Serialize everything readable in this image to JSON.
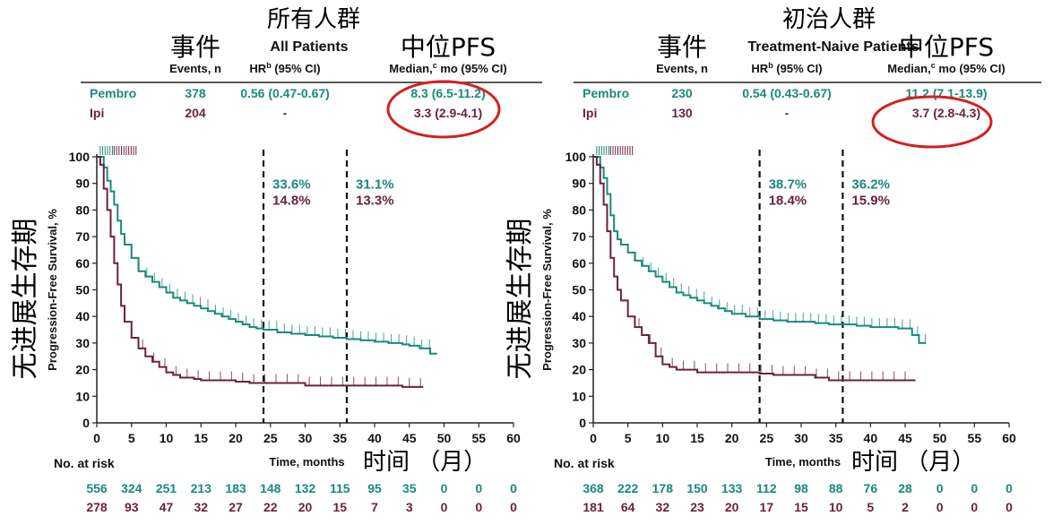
{
  "colors": {
    "pembro": "#1a8a7a",
    "ipi": "#6b2141",
    "circle": "#d42020",
    "axis": "#222222"
  },
  "common": {
    "y_axis_title": "Progression-Free Survival, %",
    "y_axis_cn": "无进展生存期",
    "x_axis_title": "Time, months",
    "x_axis_cn": "时间 （月）",
    "col_events_cn": "事件",
    "col_events": "Events, n",
    "col_hr": "HR",
    "col_hr_sup": "b",
    "col_hr_ci": " (95% CI)",
    "col_median_cn": "中位PFS",
    "col_median_label": "Median,",
    "col_median_sup": "c",
    "col_median_unit": " mo (95% CI)",
    "risk_label": "No. at risk"
  },
  "chart_data": [
    {
      "type": "line",
      "subtitle_cn": "所有人群",
      "title": "All Patients",
      "xlim": [
        0,
        60
      ],
      "ylim": [
        0,
        100
      ],
      "xticks": [
        0,
        5,
        10,
        15,
        20,
        25,
        30,
        35,
        40,
        45,
        50,
        55,
        60
      ],
      "yticks": [
        0,
        10,
        20,
        30,
        40,
        50,
        60,
        70,
        80,
        90,
        100
      ],
      "landmarks": [
        24,
        36
      ],
      "annotations": [
        {
          "pembro": "33.6%",
          "ipi": "14.8%"
        },
        {
          "pembro": "31.1%",
          "ipi": "13.3%"
        }
      ],
      "table": [
        {
          "arm": "Pembro",
          "events": "378",
          "hr": "0.56 (0.47-0.67)",
          "median": "8.3 (6.5-11.2)"
        },
        {
          "arm": "Ipi",
          "events": "204",
          "hr": "-",
          "median": "3.3 (2.9-4.1)"
        }
      ],
      "series": [
        {
          "name": "Pembro",
          "x": [
            0,
            1,
            1.5,
            2,
            2.5,
            3,
            3.5,
            4,
            5,
            6,
            7,
            8,
            9,
            10,
            11,
            12,
            13,
            14,
            15,
            16,
            17,
            18,
            19,
            20,
            21,
            22,
            23,
            24,
            26,
            28,
            30,
            32,
            34,
            36,
            38,
            40,
            42,
            44,
            45,
            46,
            46.5,
            47,
            48,
            49
          ],
          "y": [
            100,
            96,
            91,
            87,
            82,
            76,
            71,
            67,
            62,
            57,
            55,
            53,
            51,
            49,
            47,
            46,
            45,
            44,
            43,
            42,
            41,
            40,
            39,
            38,
            37,
            36,
            35.5,
            35,
            34,
            33.5,
            33,
            32.5,
            32,
            31.5,
            31,
            30.5,
            30,
            29.5,
            29,
            29,
            28,
            28,
            26,
            26
          ]
        },
        {
          "name": "Ipi",
          "x": [
            0,
            0.5,
            1,
            1.5,
            2,
            2.5,
            3,
            3.5,
            4,
            5,
            6,
            7,
            8,
            9,
            10,
            11,
            12,
            13,
            14,
            15,
            17,
            19,
            20,
            22,
            24,
            26,
            28,
            30,
            32,
            34,
            36,
            40,
            44,
            47
          ],
          "y": [
            100,
            97,
            88,
            80,
            70,
            60,
            52,
            44,
            38,
            32,
            28,
            25,
            23,
            21,
            19,
            18,
            17,
            17,
            16.5,
            16,
            16,
            16,
            15.5,
            15,
            15,
            15,
            15,
            14,
            14,
            14,
            14,
            14,
            13.5,
            13.5
          ]
        }
      ],
      "at_risk": {
        "pembro": [
          "556",
          "324",
          "251",
          "213",
          "183",
          "148",
          "132",
          "115",
          "95",
          "35",
          "0",
          "0",
          "0"
        ],
        "ipi": [
          "278",
          "93",
          "47",
          "32",
          "27",
          "22",
          "20",
          "15",
          "7",
          "3",
          "0",
          "0",
          "0"
        ]
      }
    },
    {
      "type": "line",
      "subtitle_cn": "初治人群",
      "title": "Treatment-Naive Patients",
      "xlim": [
        0,
        60
      ],
      "ylim": [
        0,
        100
      ],
      "xticks": [
        0,
        5,
        10,
        15,
        20,
        25,
        30,
        35,
        40,
        45,
        50,
        55,
        60
      ],
      "yticks": [
        0,
        10,
        20,
        30,
        40,
        50,
        60,
        70,
        80,
        90,
        100
      ],
      "landmarks": [
        24,
        36
      ],
      "annotations": [
        {
          "pembro": "38.7%",
          "ipi": "18.4%"
        },
        {
          "pembro": "36.2%",
          "ipi": "15.9%"
        }
      ],
      "table": [
        {
          "arm": "Pembro",
          "events": "230",
          "hr": "0.54 (0.43-0.67)",
          "median": "11.2 (7.1-13.9)"
        },
        {
          "arm": "Ipi",
          "events": "130",
          "hr": "-",
          "median": "3.7 (2.8-4.3)"
        }
      ],
      "series": [
        {
          "name": "Pembro",
          "x": [
            0,
            1,
            1.5,
            2,
            2.5,
            3,
            3.5,
            4,
            5,
            6,
            7,
            8,
            9,
            10,
            11,
            12,
            13,
            14,
            15,
            16,
            17,
            18,
            19,
            20,
            22,
            24,
            26,
            28,
            30,
            32,
            34,
            36,
            38,
            40,
            42,
            44,
            46,
            47,
            48
          ],
          "y": [
            100,
            96,
            92,
            86,
            78,
            72,
            69,
            67,
            64,
            61,
            59,
            57,
            55,
            53,
            51,
            49,
            48,
            47,
            46,
            45,
            44,
            43,
            42,
            41,
            40,
            39,
            38.5,
            38,
            38,
            37.5,
            37,
            37,
            36.5,
            36,
            36,
            35.5,
            33,
            30,
            30
          ]
        },
        {
          "name": "Ipi",
          "x": [
            0,
            0.5,
            1,
            1.5,
            2,
            2.5,
            3,
            3.5,
            4,
            5,
            6,
            7,
            8,
            9,
            10,
            11,
            12,
            13,
            15,
            17,
            19,
            21,
            24,
            26,
            28,
            30,
            32,
            34,
            36,
            40,
            44,
            46.5
          ],
          "y": [
            100,
            97,
            90,
            82,
            72,
            62,
            55,
            50,
            46,
            40,
            36,
            33,
            30,
            25,
            22,
            21,
            20,
            20,
            19,
            19,
            19,
            19,
            18.5,
            18,
            18,
            18,
            17,
            16,
            16,
            16,
            16,
            16
          ]
        }
      ],
      "at_risk": {
        "pembro": [
          "368",
          "222",
          "178",
          "150",
          "133",
          "112",
          "98",
          "88",
          "76",
          "28",
          "0",
          "0",
          "0"
        ],
        "ipi": [
          "181",
          "64",
          "32",
          "23",
          "20",
          "17",
          "15",
          "10",
          "5",
          "2",
          "0",
          "0",
          "0"
        ]
      }
    }
  ]
}
